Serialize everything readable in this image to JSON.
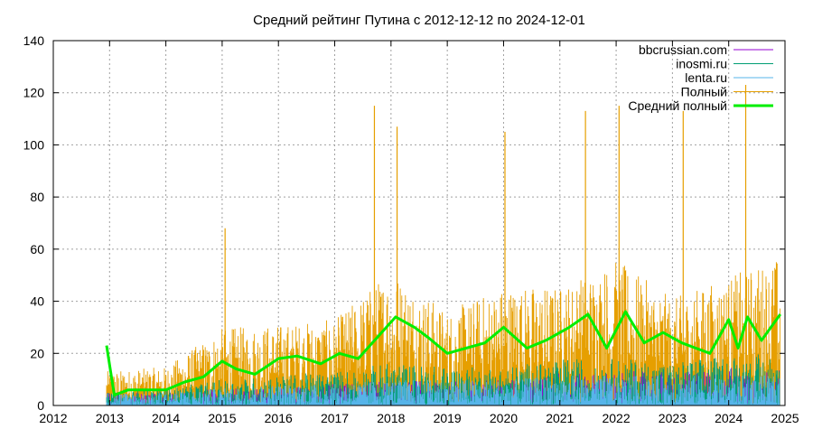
{
  "chart_data": {
    "type": "line",
    "title": "Средний рейтинг Путина с 2012-12-12  по 2024-12-01",
    "xlabel": "",
    "ylabel": "",
    "x_range": [
      "2012-01-01",
      "2025-01-01"
    ],
    "ylim": [
      0,
      140
    ],
    "x_ticks": [
      "2012",
      "2013",
      "2014",
      "2015",
      "2016",
      "2017",
      "2018",
      "2019",
      "2020",
      "2021",
      "2022",
      "2023",
      "2024",
      "2025"
    ],
    "y_ticks": [
      0,
      20,
      40,
      60,
      80,
      100,
      120,
      140
    ],
    "grid": true,
    "legend_position": "top-right",
    "series": [
      {
        "name": "bbcrussian.com",
        "color": "#9400d3",
        "style": "dense-spikes",
        "typical_max": 12,
        "x": [
          "2013-01",
          "2014-01",
          "2015-01",
          "2016-01",
          "2017-01",
          "2018-01",
          "2019-01",
          "2020-01",
          "2021-01",
          "2022-01",
          "2023-01",
          "2024-01",
          "2024-12"
        ],
        "y": [
          3,
          3,
          4,
          4,
          5,
          6,
          6,
          6,
          8,
          8,
          8,
          9,
          9
        ]
      },
      {
        "name": "inosmi.ru",
        "color": "#009e73",
        "style": "dense-spikes",
        "typical_max": 22,
        "x": [
          "2013-01",
          "2014-01",
          "2015-01",
          "2016-01",
          "2017-01",
          "2018-01",
          "2019-01",
          "2020-01",
          "2021-01",
          "2022-01",
          "2023-01",
          "2024-01",
          "2024-12"
        ],
        "y": [
          3,
          4,
          6,
          7,
          8,
          10,
          9,
          9,
          11,
          11,
          10,
          12,
          12
        ]
      },
      {
        "name": "lenta.ru",
        "color": "#56b4e9",
        "style": "dense-spikes",
        "typical_max": 14,
        "x": [
          "2013-01",
          "2014-01",
          "2015-01",
          "2016-01",
          "2017-01",
          "2018-01",
          "2019-01",
          "2020-01",
          "2021-01",
          "2022-01",
          "2023-01",
          "2024-01",
          "2024-12"
        ],
        "y": [
          3,
          3,
          4,
          5,
          5,
          6,
          6,
          6,
          7,
          7,
          7,
          7,
          7
        ]
      },
      {
        "name": "Полный",
        "color": "#e69f00",
        "style": "dense-spikes",
        "peaks": [
          {
            "x": "2015-01-20",
            "y": 68
          },
          {
            "x": "2017-09-15",
            "y": 115
          },
          {
            "x": "2018-02-10",
            "y": 107
          },
          {
            "x": "2020-01-10",
            "y": 105
          },
          {
            "x": "2021-06-15",
            "y": 113
          },
          {
            "x": "2022-01-20",
            "y": 115
          },
          {
            "x": "2023-03-10",
            "y": 113
          },
          {
            "x": "2024-04-20",
            "y": 123
          }
        ],
        "x": [
          "2013-01",
          "2014-01",
          "2015-01",
          "2016-01",
          "2017-01",
          "2018-01",
          "2019-01",
          "2020-01",
          "2021-01",
          "2022-01",
          "2023-01",
          "2024-01",
          "2024-12"
        ],
        "y": [
          8,
          9,
          18,
          19,
          20,
          32,
          22,
          28,
          28,
          34,
          25,
          30,
          35
        ]
      },
      {
        "name": "Средний полный",
        "color": "#00ee00",
        "style": "thick-line",
        "x": [
          "2012-12-12",
          "2013-02-01",
          "2013-05-01",
          "2013-09-01",
          "2014-01-01",
          "2014-05-01",
          "2014-09-01",
          "2015-01-01",
          "2015-04-01",
          "2015-08-01",
          "2016-01-01",
          "2016-05-01",
          "2016-10-01",
          "2017-02-01",
          "2017-06-01",
          "2017-10-01",
          "2018-02-01",
          "2018-06-01",
          "2018-09-01",
          "2019-01-01",
          "2019-05-01",
          "2019-09-01",
          "2020-01-01",
          "2020-06-01",
          "2020-10-01",
          "2021-03-01",
          "2021-07-01",
          "2021-11-01",
          "2022-03-01",
          "2022-07-01",
          "2022-11-01",
          "2023-03-01",
          "2023-06-01",
          "2023-09-01",
          "2024-01-01",
          "2024-03-01",
          "2024-05-01",
          "2024-08-01",
          "2024-12-01"
        ],
        "y": [
          23,
          4,
          6,
          6,
          6,
          9,
          11,
          17,
          14,
          12,
          18,
          19,
          16,
          20,
          18,
          26,
          34,
          30,
          26,
          20,
          22,
          24,
          30,
          22,
          25,
          30,
          35,
          22,
          36,
          24,
          28,
          24,
          22,
          20,
          33,
          22,
          34,
          25,
          35
        ]
      }
    ]
  }
}
